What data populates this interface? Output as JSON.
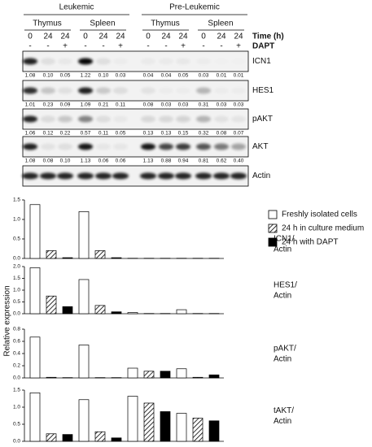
{
  "blot": {
    "groups": [
      {
        "label": "Leukemic",
        "tissues": [
          "Thymus",
          "Spleen"
        ]
      },
      {
        "label": "Pre-Leukemic",
        "tissues": [
          "Thymus",
          "Spleen"
        ]
      }
    ],
    "times": [
      "0",
      "24",
      "24"
    ],
    "time_label": "Time (h)",
    "dapt": [
      "-",
      "-",
      "+"
    ],
    "dapt_label": "DAPT",
    "rows": [
      {
        "label": "ICN1",
        "quant": [
          "1.08",
          "0.10",
          "0.05",
          "1.22",
          "0.10",
          "0.03",
          "0.04",
          "0.04",
          "0.05",
          "0.03",
          "0.01",
          "0.01"
        ]
      },
      {
        "label": "HES1",
        "quant": [
          "1.01",
          "0.23",
          "0.09",
          "1.09",
          "0.21",
          "0.11",
          "0.08",
          "0.03",
          "0.03",
          "0.31",
          "0.03",
          "0.03"
        ]
      },
      {
        "label": "pAKT",
        "quant": [
          "1.06",
          "0.12",
          "0.22",
          "0.57",
          "0.11",
          "0.05",
          "0.13",
          "0.13",
          "0.15",
          "0.32",
          "0.08",
          "0.07"
        ]
      },
      {
        "label": "AKT",
        "quant": [
          "1.08",
          "0.08",
          "0.10",
          "1.13",
          "0.06",
          "0.06",
          "1.13",
          "0.88",
          "0.94",
          "0.81",
          "0.62",
          "0.40"
        ]
      }
    ],
    "loading_label": "Actin"
  },
  "chart_data": {
    "type": "bar",
    "ylabel": "Relative expression",
    "series": [
      {
        "name": "Freshly isolated cells",
        "color": "#ffffff",
        "pattern": "solid"
      },
      {
        "name": "24 h in culture medium",
        "color": "#ffffff",
        "pattern": "hatch"
      },
      {
        "name": "24 h with DAPT",
        "color": "#000000",
        "pattern": "solid"
      }
    ],
    "panels": [
      {
        "label": [
          "ICN1/",
          "Actin"
        ],
        "ylim": [
          0,
          1.5
        ],
        "yticks": [
          {
            "value": 0,
            "label": "0.0"
          },
          0.5,
          {
            "value": 1,
            "label": "1.0"
          },
          1.5
        ],
        "values": [
          [
            1.38,
            1.2,
            0.005,
            0.005
          ],
          [
            0.2,
            0.2,
            0.005,
            0.005
          ],
          [
            0.02,
            0.02,
            0.005,
            0.005
          ]
        ]
      },
      {
        "label": [
          "HES1/",
          "Actin"
        ],
        "ylim": [
          0,
          2
        ],
        "yticks": [
          {
            "value": 0,
            "label": "0.0"
          },
          0.5,
          {
            "value": 1,
            "label": "1.0"
          },
          1.5,
          {
            "value": 2,
            "label": "2.0"
          }
        ],
        "values": [
          [
            1.95,
            1.45,
            0.05,
            0.17
          ],
          [
            0.75,
            0.35,
            0.01,
            0.01
          ],
          [
            0.3,
            0.08,
            0.01,
            0.01
          ]
        ]
      },
      {
        "label": [
          "pAKT/",
          "Actin"
        ],
        "ylim": [
          0,
          0.8
        ],
        "yticks": [
          {
            "value": 0,
            "label": "0.0"
          },
          0.2,
          0.4,
          0.6,
          0.8
        ],
        "values": [
          [
            0.67,
            0.54,
            0.16,
            0.15
          ],
          [
            0.01,
            0.005,
            0.11,
            0.01
          ],
          [
            0.005,
            0.005,
            0.11,
            0.05
          ]
        ]
      },
      {
        "label": [
          "tAKT/",
          "Actin"
        ],
        "ylim": [
          0,
          1.5
        ],
        "yticks": [
          {
            "value": 0,
            "label": "0.0"
          },
          0.5,
          {
            "value": 1,
            "label": "1.0"
          },
          1.5
        ],
        "values": [
          [
            1.42,
            1.22,
            1.32,
            0.82
          ],
          [
            0.22,
            0.28,
            1.12,
            0.68
          ],
          [
            0.2,
            0.1,
            0.87,
            0.6
          ]
        ]
      }
    ]
  }
}
